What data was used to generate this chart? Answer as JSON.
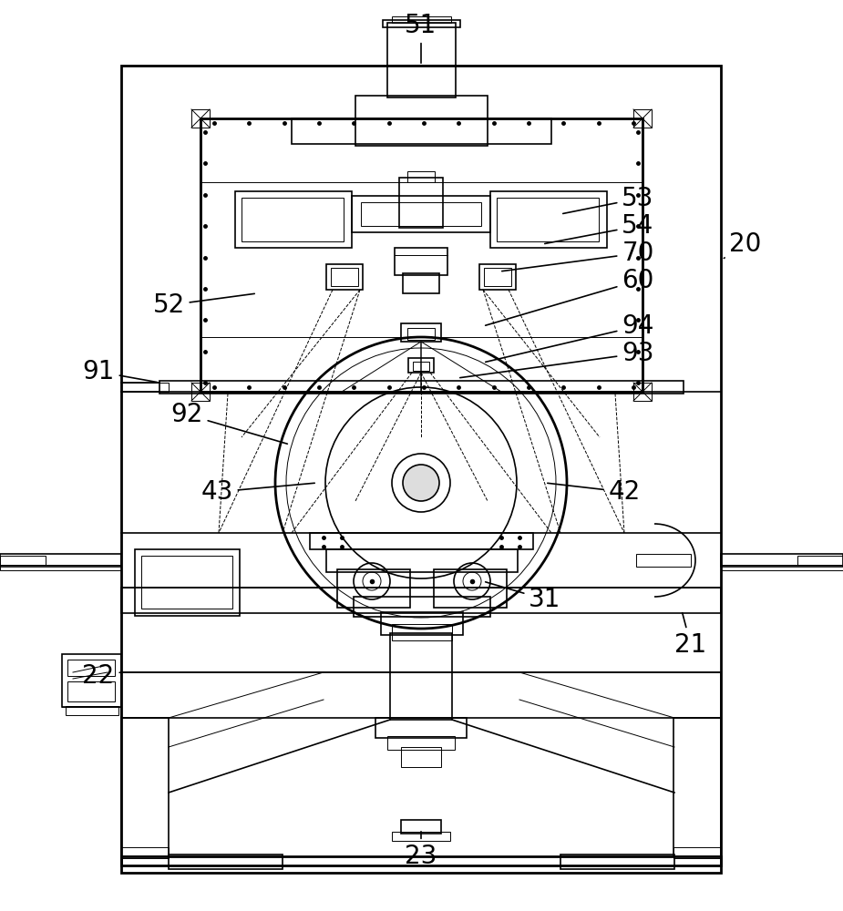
{
  "bg_color": "#ffffff",
  "line_color": "#000000",
  "lw": 1.2,
  "lw_thin": 0.7,
  "lw_thick": 2.0,
  "figsize": [
    9.25,
    10.0
  ],
  "dpi": 100,
  "labels": [
    [
      "51",
      462,
      28,
      462,
      72
    ],
    [
      "20",
      818,
      268,
      792,
      285
    ],
    [
      "53",
      700,
      218,
      615,
      235
    ],
    [
      "54",
      700,
      248,
      595,
      268
    ],
    [
      "70",
      700,
      278,
      548,
      298
    ],
    [
      "60",
      700,
      308,
      530,
      358
    ],
    [
      "52",
      185,
      335,
      282,
      322
    ],
    [
      "91",
      108,
      408,
      175,
      420
    ],
    [
      "94",
      700,
      358,
      530,
      398
    ],
    [
      "93",
      700,
      388,
      502,
      415
    ],
    [
      "92",
      205,
      455,
      318,
      488
    ],
    [
      "42",
      685,
      540,
      598,
      530
    ],
    [
      "43",
      238,
      540,
      348,
      530
    ],
    [
      "31",
      598,
      658,
      530,
      638
    ],
    [
      "21",
      758,
      708,
      748,
      670
    ],
    [
      "22",
      108,
      742,
      133,
      738
    ],
    [
      "23",
      462,
      940,
      462,
      910
    ]
  ]
}
